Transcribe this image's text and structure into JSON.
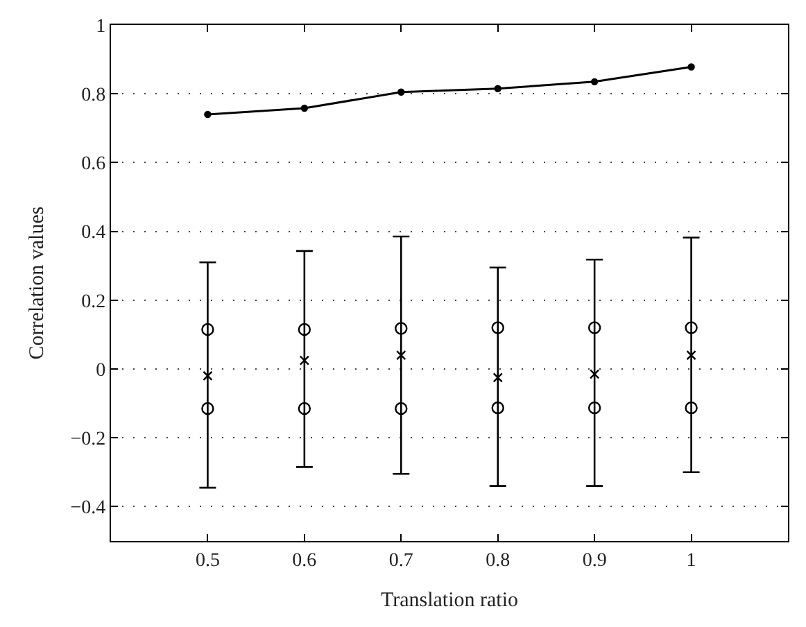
{
  "chart_data": {
    "type": "line",
    "xlabel": "Translation ratio",
    "ylabel": "Correlation values",
    "x": [
      0.5,
      0.6,
      0.7,
      0.8,
      0.9,
      1
    ],
    "series": [
      {
        "color": "#000000",
        "marker": "circle",
        "values": [
          0.74,
          0.758,
          0.805,
          0.815,
          0.835,
          0.878
        ]
      },
      {
        "type": "scatter",
        "color": "#000000",
        "marker": "cross",
        "values": [
          -0.02,
          0.025,
          0.04,
          -0.025,
          -0.015,
          0.04
        ],
        "errors": [
          [
            -0.345,
            0.31
          ],
          [
            -0.285,
            0.343
          ],
          [
            -0.305,
            0.385
          ],
          [
            -0.34,
            0.295
          ],
          [
            -0.34,
            0.318
          ],
          [
            -0.3,
            0.382
          ]
        ]
      },
      {
        "type": "scatter",
        "color": "#000000",
        "marker": "circle-open",
        "values": [
          0.115,
          0.115,
          0.118,
          0.12,
          0.12,
          0.12
        ]
      },
      {
        "type": "scatter",
        "color": "#000000",
        "marker": "circle-open",
        "values": [
          -0.115,
          -0.115,
          -0.115,
          -0.113,
          -0.113,
          -0.113
        ]
      }
    ],
    "xlim": [
      0.4,
      1.1
    ],
    "xticks": [
      0.5,
      0.6,
      0.7,
      0.8,
      0.9,
      1
    ],
    "ylim": [
      -0.5,
      1
    ],
    "yticks": [
      -0.4,
      -0.2,
      0,
      0.2,
      0.4,
      0.6,
      0.8,
      1
    ],
    "grid": "y"
  }
}
